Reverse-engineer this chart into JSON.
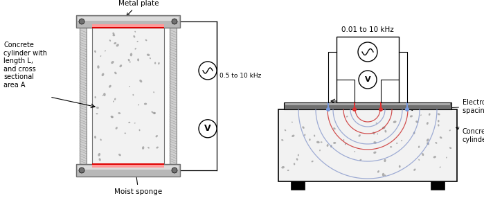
{
  "bg_color": "#ffffff",
  "gray_light": "#d0d0d0",
  "gray_mid": "#a8a8a8",
  "gray_dark": "#707070",
  "gray_plate": "#b8b8b8",
  "pink_sponge": "#ff9999",
  "red_sponge": "#dd0000",
  "blue_electrode": "#7799dd",
  "red_electrode": "#dd3333",
  "concrete_bg": "#f2f2f2",
  "aggregate_color": "#909090",
  "label_fontsize": 7.5,
  "annotation_fontsize": 7.5,
  "left_labels": {
    "concrete": "Concrete\ncylinder with\nlength L,\nand cross\nsectional\narea A",
    "metal_plate": "Metal plate",
    "moist_sponge": "Moist sponge"
  },
  "right_labels": {
    "freq1": "0.01 to 10 kHz",
    "freq2": "0.5 to 10 kHz",
    "electrodes": "Electrodes,\nspacing a",
    "concrete": "Concrete\ncylinder"
  }
}
